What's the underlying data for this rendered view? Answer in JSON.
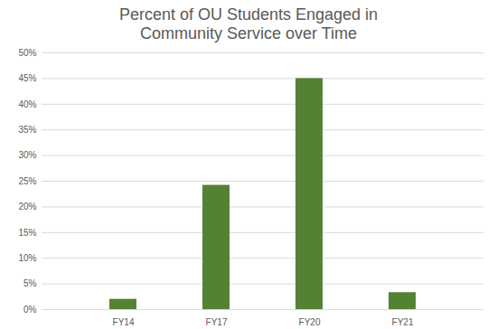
{
  "chart_data": {
    "type": "bar",
    "title": "Percent of OU Students Engaged in Community Service over Time",
    "categories": [
      "FY14",
      "FY17",
      "FY20",
      "FY21"
    ],
    "values": [
      2,
      24.2,
      45,
      3.3
    ],
    "color": "#548235",
    "ylim": [
      0,
      50
    ],
    "yticks": [
      {
        "value": 0,
        "label": "0%"
      },
      {
        "value": 5,
        "label": "5%"
      },
      {
        "value": 10,
        "label": "10%"
      },
      {
        "value": 15,
        "label": "15%"
      },
      {
        "value": 20,
        "label": "20%"
      },
      {
        "value": 25,
        "label": "25%"
      },
      {
        "value": 30,
        "label": "30%"
      },
      {
        "value": 35,
        "label": "35%"
      },
      {
        "value": 40,
        "label": "40%"
      },
      {
        "value": 45,
        "label": "45%"
      },
      {
        "value": 50,
        "label": "50%"
      }
    ],
    "grid": true
  }
}
